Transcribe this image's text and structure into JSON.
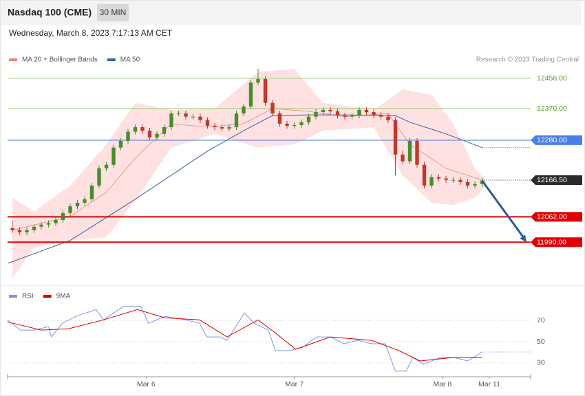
{
  "header": {
    "title": "Nasdaq 100 (CME)",
    "timeframe": "30 MIN",
    "date": "Wednesday, March 8, 2023 7:17:13 AM CET"
  },
  "chart_data": [
    {
      "type": "candlestick",
      "annotation": "Research © 2023 Trading Central",
      "up_color": "#4a8c2a",
      "down_color": "#c0392b",
      "xlim": [
        -0.667,
        71.714
      ],
      "ylim": [
        11877,
        12493
      ],
      "open": [
        12030,
        12024,
        12018,
        12024,
        12034,
        12040,
        12044,
        12053,
        12073,
        12092,
        12102,
        12112,
        12151,
        12200,
        12210,
        12259,
        12278,
        12304,
        12317,
        12307,
        12288,
        12298,
        12317,
        12356,
        12356,
        12347,
        12347,
        12337,
        12321,
        12317,
        12313,
        12317,
        12356,
        12376,
        12444,
        12454,
        12386,
        12356,
        12327,
        12321,
        12323,
        12331,
        12347,
        12360,
        12366,
        12362,
        12350,
        12347,
        12350,
        12366,
        12360,
        12352,
        12347,
        12337,
        12239,
        12220,
        12278,
        12210,
        12151,
        12175,
        12171,
        12167,
        12167,
        12161,
        12151,
        12155
      ],
      "high": [
        12050,
        12032,
        12032,
        12042,
        12048,
        12052,
        12061,
        12081,
        12100,
        12110,
        12120,
        12159,
        12208,
        12218,
        12267,
        12286,
        12312,
        12325,
        12325,
        12315,
        12306,
        12325,
        12364,
        12364,
        12364,
        12355,
        12355,
        12345,
        12329,
        12325,
        12325,
        12364,
        12384,
        12452,
        12483,
        12462,
        12394,
        12364,
        12335,
        12331,
        12339,
        12355,
        12368,
        12374,
        12374,
        12370,
        12358,
        12358,
        12374,
        12374,
        12368,
        12360,
        12355,
        12345,
        12250,
        12286,
        12286,
        12218,
        12183,
        12183,
        12179,
        12175,
        12175,
        12169,
        12163,
        12173
      ],
      "low": [
        12016,
        12010,
        12010,
        12016,
        12026,
        12032,
        12036,
        12045,
        12065,
        12084,
        12094,
        12104,
        12143,
        12192,
        12202,
        12251,
        12270,
        12296,
        12299,
        12280,
        12280,
        12290,
        12309,
        12348,
        12339,
        12339,
        12329,
        12313,
        12309,
        12305,
        12305,
        12309,
        12348,
        12368,
        12436,
        12378,
        12348,
        12319,
        12313,
        12313,
        12315,
        12323,
        12339,
        12352,
        12354,
        12342,
        12339,
        12339,
        12342,
        12352,
        12344,
        12339,
        12329,
        12180,
        12212,
        12212,
        12202,
        12143,
        12143,
        12163,
        12159,
        12159,
        12153,
        12143,
        12143,
        12147
      ],
      "close": [
        12024,
        12018,
        12024,
        12034,
        12040,
        12044,
        12053,
        12073,
        12092,
        12102,
        12112,
        12151,
        12200,
        12210,
        12259,
        12278,
        12304,
        12317,
        12307,
        12288,
        12298,
        12317,
        12356,
        12356,
        12347,
        12347,
        12337,
        12321,
        12317,
        12313,
        12317,
        12356,
        12376,
        12444,
        12454,
        12386,
        12356,
        12327,
        12321,
        12323,
        12331,
        12347,
        12360,
        12366,
        12362,
        12350,
        12347,
        12350,
        12366,
        12360,
        12352,
        12347,
        12337,
        12239,
        12220,
        12278,
        12210,
        12151,
        12175,
        12171,
        12167,
        12167,
        12161,
        12151,
        12155,
        12165
      ],
      "series": [
        {
          "name": "MA 20 + Bollinger Bands",
          "color": "#f08080",
          "x": [
            0,
            8,
            13,
            17,
            22,
            27,
            32,
            36,
            41,
            46,
            52,
            55,
            60,
            65
          ],
          "values": [
            12024,
            12063,
            12132,
            12229,
            12327,
            12317,
            12327,
            12370,
            12362,
            12347,
            12356,
            12268,
            12200,
            12167
          ],
          "band": {
            "color": "#ffe1e1",
            "x": [
              0,
              3,
              8,
              13,
              17,
              22,
              28,
              34,
              39,
              43,
              50,
              54,
              58,
              61,
              64,
              65.5
            ],
            "upper": [
              12116,
              12077,
              12151,
              12268,
              12386,
              12366,
              12370,
              12474,
              12483,
              12386,
              12366,
              12425,
              12409,
              12327,
              12200,
              12167
            ],
            "lower": [
              11887,
              11975,
              11995,
              12004,
              12108,
              12259,
              12298,
              12259,
              12268,
              12307,
              12317,
              12180,
              12102,
              12096,
              12116,
              12151
            ]
          }
        },
        {
          "name": "MA 50",
          "color": "#3a5f9a",
          "x": [
            -0.6,
            8,
            17,
            27,
            32,
            36,
            41,
            46,
            53,
            55,
            60,
            65
          ],
          "values": [
            11930,
            11995,
            12112,
            12249,
            12307,
            12350,
            12352,
            12352,
            12350,
            12331,
            12298,
            12259
          ]
        }
      ],
      "levels": [
        {
          "value": 12456,
          "label": "12456.00",
          "color": "#9bcf78",
          "text_color": "#4c9a1e",
          "box": false,
          "line": "solid",
          "width": 1
        },
        {
          "value": 12370,
          "label": "12370.00",
          "color": "#9bcf78",
          "text_color": "#4c9a1e",
          "box": false,
          "line": "solid",
          "width": 1
        },
        {
          "value": 12280,
          "label": "12280.00",
          "color": "#4a7ee8",
          "text_color": "#ffffff",
          "box": true,
          "line": "solid",
          "width": 1.2
        },
        {
          "value": 12166.5,
          "label": "12166.50",
          "color": "#2b2b2b",
          "text_color": "#ffffff",
          "box": true,
          "line": "dotted",
          "width": 1
        },
        {
          "value": 12062,
          "label": "12062.00",
          "color": "#e00000",
          "text_color": "#ffffff",
          "box": true,
          "line": "solid",
          "width": 2
        },
        {
          "value": 11990,
          "label": "11990.00",
          "color": "#e00000",
          "text_color": "#ffffff",
          "box": true,
          "line": "solid",
          "width": 2
        }
      ],
      "target": 11990,
      "arrow_color": "#2e5c9a"
    },
    {
      "type": "line",
      "xlim": [
        -0.667,
        71.714
      ],
      "ylim": [
        17,
        87
      ],
      "yticks": [
        70,
        50,
        30
      ],
      "grid": true,
      "xticks": [
        {
          "value": 18.5,
          "label": "Mar 6"
        },
        {
          "value": 39,
          "label": "Mar 7"
        },
        {
          "value": 59.5,
          "label": "Mar 8"
        },
        {
          "value": 66,
          "label": "Mar 11"
        }
      ],
      "series": [
        {
          "name": "RSI",
          "color": "#7b96e6",
          "x": [
            -0.7,
            1.1,
            3.0,
            5.0,
            5.4,
            6.9,
            8.8,
            11.6,
            12.6,
            15.4,
            17.8,
            18.8,
            21.1,
            24.0,
            25.9,
            26.9,
            28.8,
            29.7,
            32.1,
            33.5,
            35.4,
            36.4,
            38.3,
            40.2,
            42.1,
            44.0,
            45.9,
            47.8,
            49.7,
            51.6,
            53.0,
            54.5,
            55.4,
            56.9,
            59.2,
            61.1,
            63.0,
            65.0
          ],
          "values": [
            70.6,
            61,
            61,
            64.2,
            54.5,
            67.4,
            73.9,
            80.3,
            70.6,
            83.5,
            83.5,
            67.4,
            73.9,
            70.6,
            67.4,
            54.5,
            54.5,
            51.3,
            77.1,
            67.4,
            61,
            41.6,
            41.6,
            44.8,
            54.5,
            54.5,
            48.1,
            51.3,
            48.1,
            48.1,
            22.3,
            22.3,
            35.2,
            28.7,
            35.2,
            35.2,
            31.9,
            40.3
          ]
        },
        {
          "name": "9MA",
          "color": "#e00000",
          "x": [
            -0.7,
            4.0,
            7.8,
            12.6,
            17.3,
            21.1,
            25.9,
            29.7,
            34.0,
            36.4,
            39.2,
            44.0,
            49.7,
            53.5,
            56.4,
            61.1,
            65.0
          ],
          "values": [
            68.7,
            61,
            62.3,
            70.6,
            80.3,
            72.6,
            70.6,
            54.5,
            70.6,
            58.3,
            42.9,
            54.5,
            51.3,
            41.6,
            31.9,
            35.2,
            35.2
          ]
        }
      ]
    }
  ]
}
